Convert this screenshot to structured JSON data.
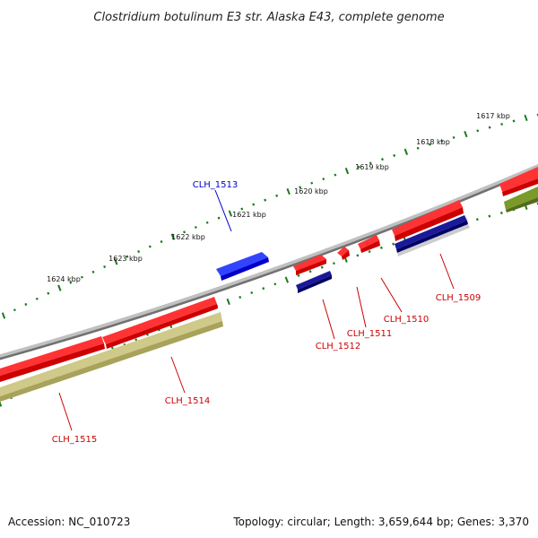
{
  "title": "Clostridium botulinum E3 str. Alaska E43, complete genome",
  "scale_ticks": [
    {
      "label": "1617 kbp"
    },
    {
      "label": "1618 kbp"
    },
    {
      "label": "1619 kbp"
    },
    {
      "label": "1620 kbp"
    },
    {
      "label": "1621 kbp"
    },
    {
      "label": "1622 kbp"
    },
    {
      "label": "1623 kbp"
    },
    {
      "label": "1624 kbp"
    }
  ],
  "genes": [
    {
      "id": "CLH_1509",
      "strand": "reverse",
      "color": "#ff0000"
    },
    {
      "id": "CLH_1510",
      "strand": "reverse",
      "color": "#ff0000"
    },
    {
      "id": "CLH_1511",
      "strand": "reverse",
      "color": "#ff0000"
    },
    {
      "id": "CLH_1512",
      "strand": "reverse",
      "color": "#ff0000"
    },
    {
      "id": "CLH_1513",
      "strand": "forward",
      "color": "#0000ff"
    },
    {
      "id": "CLH_1514",
      "strand": "reverse",
      "color": "#ff0000"
    },
    {
      "id": "CLH_1515",
      "strand": "reverse",
      "color": "#ff0000"
    }
  ],
  "colors": {
    "backbone": "#808080",
    "tick": "#1a7a1a",
    "forward_cds": "#0000ff",
    "reverse_cds": "#ff0000",
    "feature_navy": "#000080",
    "feature_khaki": "#bdb76b",
    "feature_olive": "#6b8e23",
    "feature_gray": "#c0c0c0",
    "label_blue": "#0000cc",
    "label_red": "#cc0000"
  },
  "footer": {
    "accession": "Accession: NC_010723",
    "summary": "Topology: circular; Length: 3,659,644 bp; Genes: 3,370"
  }
}
